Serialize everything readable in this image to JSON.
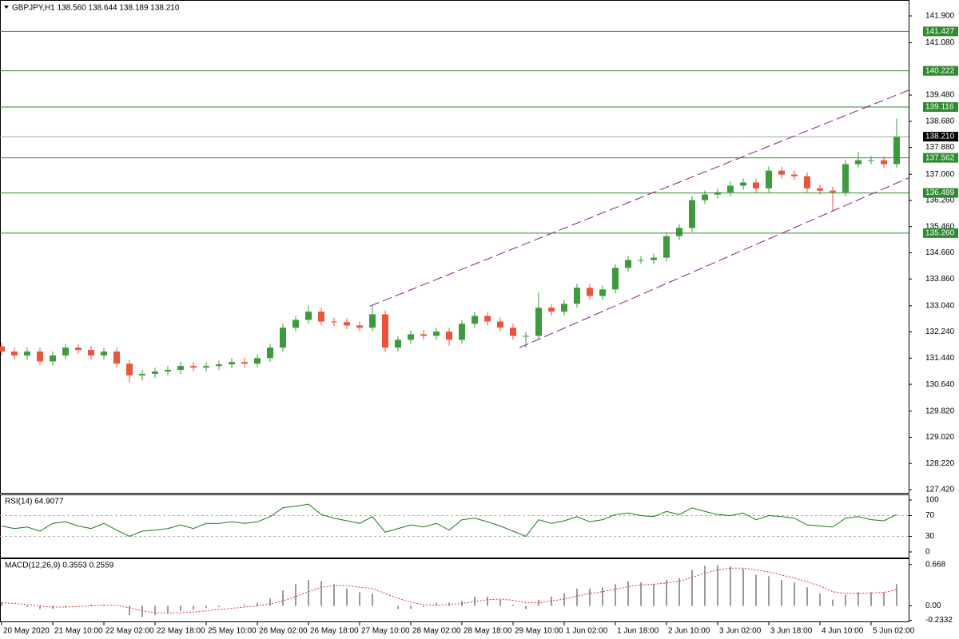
{
  "chart_data": [
    {
      "type": "candlestick",
      "title": "GBPJPY,H1  138.560 138.644 138.189 138.210",
      "x": [
        0,
        4,
        8,
        12,
        16,
        20,
        24,
        28,
        32,
        36,
        40,
        44,
        48,
        52,
        56,
        60,
        64,
        68,
        72,
        76,
        80,
        84,
        88,
        92,
        96,
        100,
        104,
        108,
        112,
        116,
        120,
        124,
        128,
        132,
        136,
        140,
        144,
        148,
        152,
        156,
        160,
        164,
        168,
        172,
        176,
        180,
        184,
        188,
        192,
        196,
        200,
        204,
        208,
        212,
        216,
        220,
        224,
        228,
        232,
        236,
        240,
        244,
        248,
        252,
        256,
        260,
        264,
        268,
        272,
        276,
        280
      ],
      "open": [
        131.8,
        131.64,
        131.52,
        131.64,
        131.34,
        131.52,
        131.76,
        131.69,
        131.52,
        131.64,
        131.27,
        130.91,
        130.96,
        131.03,
        131.08,
        131.2,
        131.15,
        131.2,
        131.25,
        131.32,
        131.27,
        131.44,
        131.76,
        132.37,
        132.61,
        132.86,
        132.56,
        132.54,
        132.44,
        132.37,
        132.78,
        131.76,
        132.0,
        132.17,
        132.12,
        132.25,
        132.0,
        132.49,
        132.73,
        132.56,
        132.37,
        132.12,
        132.12,
        132.98,
        132.86,
        133.1,
        133.59,
        133.34,
        133.54,
        134.2,
        134.44,
        134.44,
        134.51,
        135.17,
        135.42,
        136.27,
        136.44,
        136.51,
        136.71,
        136.81,
        136.63,
        137.17,
        137.05,
        137.0,
        136.63,
        136.56,
        136.51,
        137.37,
        137.49,
        137.49,
        137.37
      ],
      "high": [
        131.92,
        131.76,
        131.76,
        131.76,
        131.64,
        131.88,
        131.88,
        131.81,
        131.76,
        131.76,
        131.39,
        131.08,
        131.15,
        131.2,
        131.32,
        131.32,
        131.32,
        131.37,
        131.44,
        131.44,
        131.56,
        131.88,
        132.49,
        132.73,
        133.05,
        132.98,
        132.68,
        132.66,
        132.56,
        133.03,
        132.9,
        132.12,
        132.29,
        132.29,
        132.37,
        132.37,
        132.61,
        132.85,
        132.85,
        132.68,
        132.49,
        132.24,
        133.45,
        133.1,
        133.22,
        133.71,
        133.71,
        133.66,
        134.32,
        134.56,
        134.56,
        134.63,
        135.29,
        135.54,
        136.39,
        136.56,
        136.63,
        136.83,
        136.93,
        136.93,
        137.3,
        137.29,
        137.17,
        137.12,
        136.75,
        136.68,
        137.49,
        137.75,
        137.61,
        137.61,
        138.76
      ],
      "low": [
        131.52,
        131.4,
        131.4,
        131.22,
        131.22,
        131.4,
        131.57,
        131.4,
        131.4,
        131.15,
        130.7,
        130.75,
        130.84,
        130.91,
        130.96,
        131.03,
        131.03,
        131.08,
        131.13,
        131.15,
        131.15,
        131.32,
        131.64,
        132.25,
        132.49,
        132.44,
        132.42,
        132.32,
        132.25,
        132.25,
        131.62,
        131.64,
        131.88,
        132.0,
        132.0,
        131.82,
        131.88,
        132.37,
        132.44,
        132.25,
        132.0,
        131.76,
        132.0,
        132.74,
        132.74,
        132.98,
        133.22,
        133.22,
        133.42,
        134.08,
        134.32,
        134.32,
        134.39,
        135.05,
        135.3,
        136.15,
        136.32,
        136.39,
        136.59,
        136.51,
        136.51,
        136.93,
        136.88,
        136.51,
        136.44,
        135.95,
        136.39,
        137.25,
        137.37,
        137.25,
        137.25
      ],
      "close": [
        131.64,
        131.52,
        131.64,
        131.34,
        131.52,
        131.76,
        131.69,
        131.52,
        131.64,
        131.27,
        130.91,
        130.96,
        131.03,
        131.08,
        131.2,
        131.15,
        131.2,
        131.25,
        131.32,
        131.27,
        131.44,
        131.76,
        132.37,
        132.61,
        132.86,
        132.56,
        132.54,
        132.44,
        132.37,
        132.78,
        131.76,
        132.0,
        132.17,
        132.12,
        132.25,
        132.0,
        132.49,
        132.73,
        132.56,
        132.37,
        132.12,
        132.12,
        132.98,
        132.86,
        133.1,
        133.59,
        133.34,
        133.54,
        134.2,
        134.44,
        134.44,
        134.51,
        135.17,
        135.42,
        136.27,
        136.44,
        136.51,
        136.71,
        136.81,
        136.63,
        137.17,
        137.05,
        137.0,
        136.63,
        136.56,
        136.51,
        137.37,
        137.49,
        137.49,
        137.37,
        138.21
      ],
      "up_color": "#3d9a3d",
      "down_color": "#e8553c",
      "xlim": [
        -0.5,
        283.75
      ],
      "ylim": [
        127.322,
        142.363
      ],
      "xticks": [
        {
          "value": 0,
          "label": "20 May 2020"
        },
        {
          "value": 16,
          "label": "21 May 10:00"
        },
        {
          "value": 32,
          "label": "22 May 02:00"
        },
        {
          "value": 48,
          "label": "22 May 18:00"
        },
        {
          "value": 64,
          "label": "25 May 10:00"
        },
        {
          "value": 80,
          "label": "26 May 02:00"
        },
        {
          "value": 96,
          "label": "26 May 18:00"
        },
        {
          "value": 112,
          "label": "27 May 10:00"
        },
        {
          "value": 128,
          "label": "28 May 02:00"
        },
        {
          "value": 144,
          "label": "28 May 18:00"
        },
        {
          "value": 160,
          "label": "29 May 10:00"
        },
        {
          "value": 176,
          "label": "1 Jun 02:00"
        },
        {
          "value": 192,
          "label": "1 Jun 18:00"
        },
        {
          "value": 208,
          "label": "2 Jun 10:00"
        },
        {
          "value": 224,
          "label": "3 Jun 02:00"
        },
        {
          "value": 240,
          "label": "3 Jun 18:00"
        },
        {
          "value": 256,
          "label": "4 Jun 10:00"
        },
        {
          "value": 272,
          "label": "5 Jun 02:00"
        }
      ],
      "yticks": [
        {
          "value": 141.9,
          "label": "141.900"
        },
        {
          "value": 141.08,
          "label": "141.080"
        },
        {
          "value": 139.48,
          "label": "139.480"
        },
        {
          "value": 138.68,
          "label": "138.680"
        },
        {
          "value": 137.88,
          "label": "137.880"
        },
        {
          "value": 137.06,
          "label": "137.060"
        },
        {
          "value": 136.26,
          "label": "136.260"
        },
        {
          "value": 135.46,
          "label": "135.460"
        },
        {
          "value": 134.66,
          "label": "134.660"
        },
        {
          "value": 133.86,
          "label": "133.860"
        },
        {
          "value": 133.04,
          "label": "133.040"
        },
        {
          "value": 132.24,
          "label": "132.240"
        },
        {
          "value": 131.44,
          "label": "131.440"
        },
        {
          "value": 130.64,
          "label": "130.640"
        },
        {
          "value": 129.82,
          "label": "129.820"
        },
        {
          "value": 129.02,
          "label": "129.020"
        },
        {
          "value": 128.22,
          "label": "128.220"
        },
        {
          "value": 127.42,
          "label": "127.420"
        }
      ],
      "levels": [
        {
          "value": 141.427,
          "label": "141.427"
        },
        {
          "value": 140.222,
          "label": "140.222"
        },
        {
          "value": 139.116,
          "label": "139.116"
        },
        {
          "value": 137.562,
          "label": "137.562"
        },
        {
          "value": 136.489,
          "label": "136.489"
        },
        {
          "value": 135.26,
          "label": "135.260"
        }
      ],
      "level_color": "#2e8b2e",
      "last_price": {
        "value": 138.21,
        "label": "138.210"
      },
      "trendlines": [
        {
          "x": [
            115.25,
            283.75
          ],
          "y": [
            133.03,
            139.63
          ]
        },
        {
          "x": [
            162,
            283.75
          ],
          "y": [
            131.76,
            136.95
          ]
        }
      ],
      "trendline_color": "#8b1e8b"
    },
    {
      "type": "line",
      "title": "RSI(14) 64.9077",
      "color": "#1a7a1a",
      "values": [
        50,
        45,
        48,
        40,
        55,
        58,
        50,
        45,
        55,
        42,
        30,
        40,
        42,
        45,
        52,
        45,
        55,
        55,
        58,
        55,
        58,
        68,
        85,
        88,
        92,
        72,
        65,
        60,
        55,
        68,
        38,
        45,
        52,
        48,
        55,
        42,
        62,
        65,
        58,
        50,
        40,
        30,
        62,
        55,
        60,
        68,
        58,
        62,
        72,
        75,
        70,
        68,
        78,
        72,
        85,
        78,
        72,
        70,
        75,
        62,
        70,
        68,
        65,
        52,
        50,
        48,
        65,
        68,
        62,
        60,
        72
      ],
      "ylim": [
        -10.8,
        109.2
      ],
      "yticks": [
        100,
        70,
        30,
        0
      ],
      "levels": [
        70,
        30
      ]
    },
    {
      "type": "macd",
      "title": "MACD(12,26,9) 0.3553 0.2559",
      "color": "#9a9a9a",
      "signal_color": "#e03030",
      "values": [
        0.05,
        0.0,
        -0.02,
        -0.05,
        -0.05,
        -0.02,
        0.0,
        0.02,
        0.02,
        0.0,
        -0.15,
        -0.18,
        -0.15,
        -0.12,
        -0.08,
        -0.06,
        -0.03,
        -0.02,
        0.0,
        0.02,
        0.05,
        0.12,
        0.25,
        0.35,
        0.42,
        0.4,
        0.35,
        0.28,
        0.22,
        0.2,
        0.0,
        -0.05,
        -0.05,
        -0.02,
        0.05,
        0.05,
        0.08,
        0.15,
        0.15,
        0.1,
        0.02,
        -0.05,
        0.1,
        0.15,
        0.2,
        0.28,
        0.28,
        0.3,
        0.35,
        0.4,
        0.38,
        0.35,
        0.42,
        0.45,
        0.58,
        0.65,
        0.66,
        0.64,
        0.6,
        0.5,
        0.48,
        0.42,
        0.38,
        0.3,
        0.2,
        0.1,
        0.18,
        0.22,
        0.22,
        0.22,
        0.35
      ],
      "signal": [
        0.05,
        0.04,
        0.02,
        0.0,
        -0.02,
        -0.02,
        -0.01,
        0.0,
        0.01,
        0.01,
        -0.03,
        -0.08,
        -0.11,
        -0.12,
        -0.11,
        -0.1,
        -0.08,
        -0.06,
        -0.04,
        -0.02,
        0.0,
        0.03,
        0.08,
        0.15,
        0.23,
        0.3,
        0.33,
        0.33,
        0.3,
        0.28,
        0.2,
        0.12,
        0.06,
        0.02,
        0.01,
        0.02,
        0.04,
        0.07,
        0.1,
        0.11,
        0.09,
        0.05,
        0.05,
        0.08,
        0.11,
        0.16,
        0.2,
        0.23,
        0.27,
        0.31,
        0.34,
        0.35,
        0.37,
        0.4,
        0.46,
        0.53,
        0.58,
        0.61,
        0.61,
        0.58,
        0.55,
        0.5,
        0.45,
        0.39,
        0.32,
        0.23,
        0.2,
        0.2,
        0.21,
        0.22,
        0.26
      ],
      "ylim": [
        -0.252,
        0.756
      ],
      "yticks": [
        0.668,
        {
          "value": 0,
          "label": "0.00"
        },
        -0.2332
      ]
    }
  ]
}
